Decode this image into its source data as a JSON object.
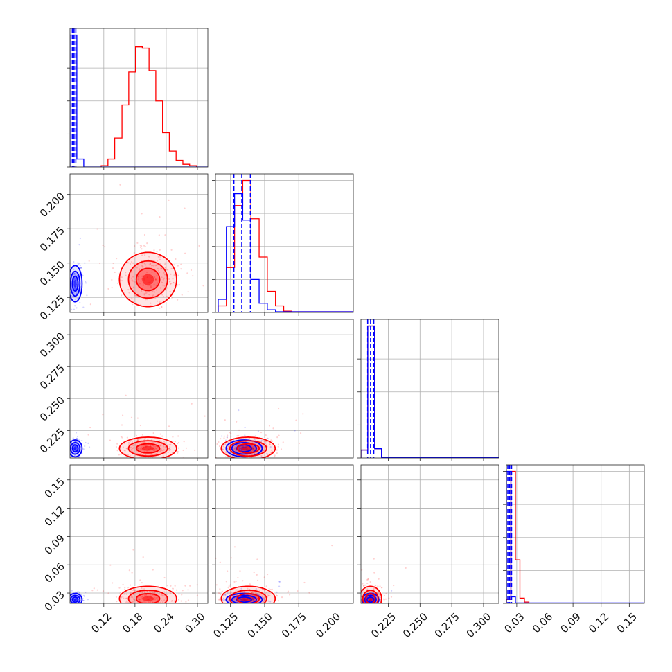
{
  "chart_data": {
    "type": "corner",
    "grid": true,
    "legend": "none",
    "colors": {
      "series_a": "#0000ff",
      "series_b": "#ff0000"
    },
    "series": [
      {
        "color": "#0000ff",
        "means": [
          0.065,
          0.135,
          0.211,
          0.023
        ],
        "sds": [
          0.006,
          0.006,
          0.003,
          0.003
        ],
        "quantile_lines": true
      },
      {
        "color": "#ff0000",
        "means": [
          0.205,
          0.138,
          0.211,
          0.024
        ],
        "sds": [
          0.025,
          0.009,
          0.004,
          0.006
        ],
        "quantile_lines": false
      }
    ],
    "parameters": [
      {
        "range": [
          0.055,
          0.32
        ],
        "ticks": [
          0.12,
          0.18,
          0.24,
          0.3
        ],
        "tick_labels": [
          "0.12",
          "0.18",
          "0.24",
          "0.30"
        ]
      },
      {
        "range": [
          0.114,
          0.215
        ],
        "ticks": [
          0.125,
          0.15,
          0.175,
          0.2
        ],
        "tick_labels": [
          "0.125",
          "0.150",
          "0.175",
          "0.200"
        ]
      },
      {
        "range": [
          0.2035,
          0.312
        ],
        "ticks": [
          0.225,
          0.25,
          0.275,
          0.3
        ],
        "tick_labels": [
          "0.225",
          "0.250",
          "0.275",
          "0.300"
        ]
      },
      {
        "range": [
          0.019,
          0.166
        ],
        "ticks": [
          0.03,
          0.06,
          0.09,
          0.12,
          0.15
        ],
        "tick_labels": [
          "0.03",
          "0.06",
          "0.09",
          "0.12",
          "0.15"
        ]
      }
    ],
    "histograms": [
      {
        "blue_bins": [
          [
            0.055,
            0.0682,
            1.0
          ],
          [
            0.0682,
            0.0815,
            0.06
          ],
          [
            0.0815,
            0.32,
            0.0
          ]
        ],
        "red_bins": [
          [
            0.115,
            0.128,
            0.01
          ],
          [
            0.128,
            0.141,
            0.06
          ],
          [
            0.141,
            0.155,
            0.22
          ],
          [
            0.155,
            0.168,
            0.47
          ],
          [
            0.168,
            0.181,
            0.72
          ],
          [
            0.181,
            0.194,
            0.91
          ],
          [
            0.194,
            0.207,
            0.9
          ],
          [
            0.207,
            0.22,
            0.73
          ],
          [
            0.22,
            0.233,
            0.5
          ],
          [
            0.233,
            0.246,
            0.26
          ],
          [
            0.246,
            0.259,
            0.12
          ],
          [
            0.259,
            0.272,
            0.05
          ],
          [
            0.272,
            0.285,
            0.02
          ],
          [
            0.285,
            0.298,
            0.01
          ]
        ],
        "blue_quantiles": [
          0.0595,
          0.0628,
          0.0662
        ]
      },
      {
        "blue_bins": [
          [
            0.116,
            0.122,
            0.1
          ],
          [
            0.122,
            0.128,
            0.65
          ],
          [
            0.128,
            0.134,
            0.9
          ],
          [
            0.134,
            0.14,
            0.7
          ],
          [
            0.14,
            0.146,
            0.25
          ],
          [
            0.146,
            0.152,
            0.07
          ],
          [
            0.152,
            0.158,
            0.02
          ],
          [
            0.158,
            0.215,
            0.005
          ]
        ],
        "red_bins": [
          [
            0.116,
            0.122,
            0.05
          ],
          [
            0.122,
            0.128,
            0.34
          ],
          [
            0.128,
            0.134,
            0.81
          ],
          [
            0.134,
            0.14,
            1.0
          ],
          [
            0.14,
            0.146,
            0.71
          ],
          [
            0.146,
            0.152,
            0.42
          ],
          [
            0.152,
            0.158,
            0.16
          ],
          [
            0.158,
            0.164,
            0.05
          ],
          [
            0.164,
            0.17,
            0.01
          ],
          [
            0.17,
            0.215,
            0.005
          ]
        ],
        "blue_quantiles": [
          0.1275,
          0.1333,
          0.1396
        ]
      },
      {
        "blue_bins": [
          [
            0.2035,
            0.2089,
            0.06
          ],
          [
            0.2089,
            0.2143,
            1.0
          ],
          [
            0.2143,
            0.2197,
            0.07
          ],
          [
            0.2197,
            0.312,
            0.003
          ]
        ],
        "red_bins": [
          [
            0.2035,
            0.2089,
            0.06
          ],
          [
            0.2089,
            0.2143,
            1.0
          ],
          [
            0.2143,
            0.2197,
            0.07
          ],
          [
            0.2197,
            0.312,
            0.003
          ]
        ],
        "blue_quantiles": [
          0.2088,
          0.2111,
          0.2136
        ]
      },
      {
        "blue_bins": [
          [
            0.019,
            0.0238,
            1.0
          ],
          [
            0.0238,
            0.0286,
            0.05
          ],
          [
            0.0286,
            0.166,
            0.003
          ]
        ],
        "red_bins": [
          [
            0.019,
            0.0238,
            0.03
          ],
          [
            0.0238,
            0.0286,
            1.0
          ],
          [
            0.0286,
            0.0334,
            0.33
          ],
          [
            0.0334,
            0.0382,
            0.04
          ],
          [
            0.0382,
            0.043,
            0.01
          ],
          [
            0.043,
            0.166,
            0.002
          ]
        ],
        "blue_quantiles": [
          0.0205,
          0.0225,
          0.0245
        ]
      }
    ]
  }
}
